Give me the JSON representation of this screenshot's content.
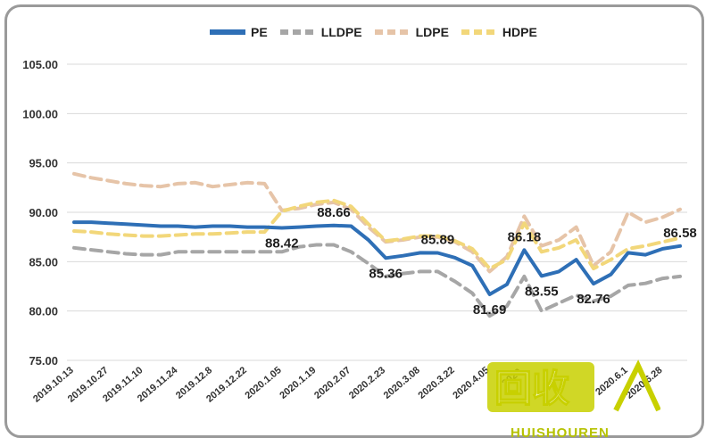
{
  "chart_data": {
    "type": "line",
    "title": "",
    "xlabel": "",
    "ylabel": "",
    "ylim": [
      75,
      105
    ],
    "yticks": [
      "105.00",
      "100.00",
      "95.00",
      "90.00",
      "85.00",
      "80.00",
      "75.00"
    ],
    "ytick_values": [
      105,
      100,
      95,
      90,
      85,
      80,
      75
    ],
    "x_labels": [
      "2019.10.13",
      "2019.10.27",
      "2019.11.10",
      "2019.11.24",
      "2019.12.8",
      "2019.12.22",
      "2020.1.05",
      "2020.1.19",
      "2020.2.07",
      "2020.2.23",
      "2020.3.08",
      "2020.3.22",
      "2020.4.05",
      "2020.",
      "",
      "",
      "2020.6.1",
      "2020.6.28"
    ],
    "x_label_index": [
      0,
      2,
      4,
      6,
      8,
      10,
      12,
      14,
      16,
      18,
      20,
      22,
      24,
      26,
      28,
      30,
      32,
      34
    ],
    "x_count": 36,
    "legend": [
      "PE",
      "LLDPE",
      "LDPE",
      "HDPE"
    ],
    "series": [
      {
        "name": "PE",
        "color": "#2e6fb6",
        "values": [
          89.0,
          89.0,
          88.9,
          88.8,
          88.7,
          88.6,
          88.6,
          88.5,
          88.6,
          88.6,
          88.5,
          88.5,
          88.42,
          88.5,
          88.6,
          88.66,
          88.6,
          87.2,
          85.36,
          85.6,
          85.9,
          85.89,
          85.4,
          84.6,
          81.69,
          82.7,
          86.18,
          83.55,
          84.0,
          85.2,
          82.76,
          83.7,
          85.9,
          85.7,
          86.3,
          86.58
        ]
      },
      {
        "name": "LLDPE",
        "color": "#a6a6a6",
        "values": [
          86.4,
          86.2,
          86.0,
          85.8,
          85.7,
          85.7,
          86.0,
          86.0,
          86.0,
          86.0,
          86.0,
          86.0,
          86.0,
          86.5,
          86.7,
          86.7,
          86.0,
          84.8,
          83.5,
          83.8,
          84.0,
          84.0,
          83.0,
          81.8,
          79.5,
          80.5,
          83.5,
          80.0,
          80.8,
          81.6,
          81.0,
          81.5,
          82.6,
          82.8,
          83.3,
          83.5
        ]
      },
      {
        "name": "LDPE",
        "color": "#e6c4a8",
        "values": [
          93.9,
          93.5,
          93.2,
          92.9,
          92.7,
          92.6,
          92.9,
          93.0,
          92.6,
          92.8,
          93.0,
          92.9,
          90.2,
          90.4,
          90.8,
          91.0,
          90.3,
          88.5,
          87.0,
          87.2,
          87.5,
          87.5,
          87.0,
          86.0,
          84.0,
          85.5,
          89.6,
          86.6,
          87.2,
          88.5,
          84.6,
          86.0,
          90.0,
          89.0,
          89.5,
          90.3
        ]
      },
      {
        "name": "HDPE",
        "color": "#f2d77a",
        "values": [
          88.1,
          88.0,
          87.8,
          87.7,
          87.6,
          87.6,
          87.7,
          87.8,
          87.8,
          87.9,
          88.0,
          88.0,
          90.1,
          90.6,
          91.0,
          91.2,
          90.6,
          88.8,
          87.1,
          87.3,
          87.6,
          87.6,
          87.1,
          86.3,
          84.3,
          85.2,
          88.9,
          86.0,
          86.4,
          87.2,
          84.3,
          85.2,
          86.3,
          86.6,
          87.0,
          87.4
        ]
      }
    ],
    "annotations": [
      {
        "text": "88.42",
        "series": "PE",
        "index": 12,
        "position": "below"
      },
      {
        "text": "88.66",
        "series": "PE",
        "index": 15,
        "position": "above"
      },
      {
        "text": "85.36",
        "series": "PE",
        "index": 18,
        "position": "below"
      },
      {
        "text": "85.89",
        "series": "PE",
        "index": 21,
        "position": "above"
      },
      {
        "text": "81.69",
        "series": "PE",
        "index": 24,
        "position": "below"
      },
      {
        "text": "86.18",
        "series": "PE",
        "index": 26,
        "position": "above"
      },
      {
        "text": "83.55",
        "series": "PE",
        "index": 27,
        "position": "below"
      },
      {
        "text": "82.76",
        "series": "PE",
        "index": 30,
        "position": "below"
      },
      {
        "text": "86.58",
        "series": "PE",
        "index": 35,
        "position": "above"
      }
    ]
  },
  "watermark": {
    "main": "回收",
    "sub": "HUISHOUREN"
  }
}
